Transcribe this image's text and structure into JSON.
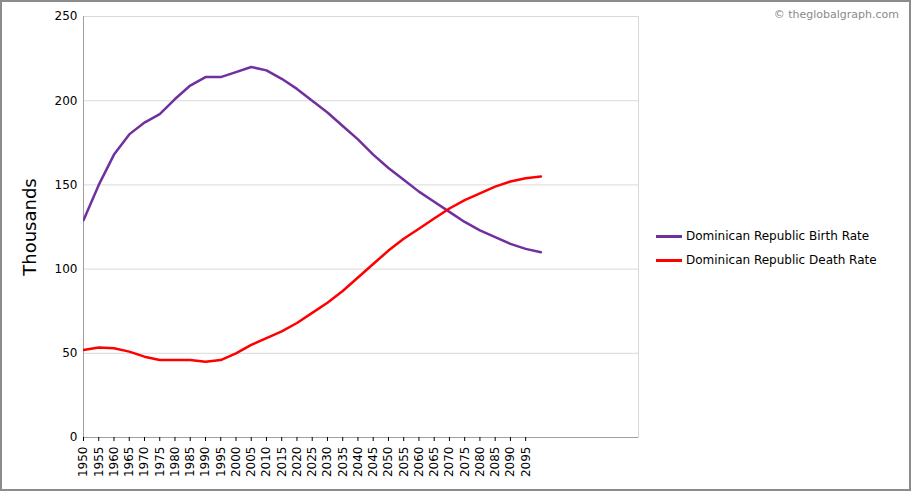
{
  "chart_data": {
    "type": "line",
    "watermark": "© theglobalgraph.com",
    "y_label": "Thousands",
    "x": [
      1950,
      1955,
      1960,
      1965,
      1970,
      1975,
      1980,
      1985,
      1990,
      1995,
      2000,
      2005,
      2010,
      2015,
      2020,
      2025,
      2030,
      2035,
      2040,
      2045,
      2050,
      2055,
      2060,
      2065,
      2070,
      2075,
      2080,
      2085,
      2090,
      2095,
      2100
    ],
    "series": [
      {
        "name": "Dominican Republic Birth Rate",
        "color": "#7030a0",
        "values": [
          129,
          150,
          168,
          180,
          187,
          192,
          201,
          209,
          214,
          214,
          217,
          220,
          218,
          213,
          207,
          200,
          193,
          185,
          177,
          168,
          160,
          153,
          146,
          140,
          134,
          128,
          123,
          119,
          115,
          112,
          110
        ]
      },
      {
        "name": "Dominican Republic Death Rate",
        "color": "#ff0000",
        "values": [
          52,
          53.5,
          53,
          51,
          48,
          46,
          46,
          46,
          45,
          46,
          50,
          55,
          59,
          63,
          68,
          74,
          80,
          87,
          95,
          103,
          111,
          118,
          124,
          130,
          136,
          141,
          145,
          149,
          152,
          154,
          155
        ]
      }
    ],
    "xlim": [
      1950,
      2132
    ],
    "xticks": [
      1950,
      1955,
      1960,
      1965,
      1970,
      1975,
      1980,
      1985,
      1990,
      1995,
      2000,
      2005,
      2010,
      2015,
      2020,
      2025,
      2030,
      2035,
      2040,
      2045,
      2050,
      2055,
      2060,
      2065,
      2070,
      2075,
      2080,
      2085,
      2090,
      2095
    ],
    "ylim": [
      0,
      250
    ],
    "yticks": [
      0,
      50,
      100,
      150,
      200,
      250
    ],
    "grid": true,
    "legend": "right"
  }
}
